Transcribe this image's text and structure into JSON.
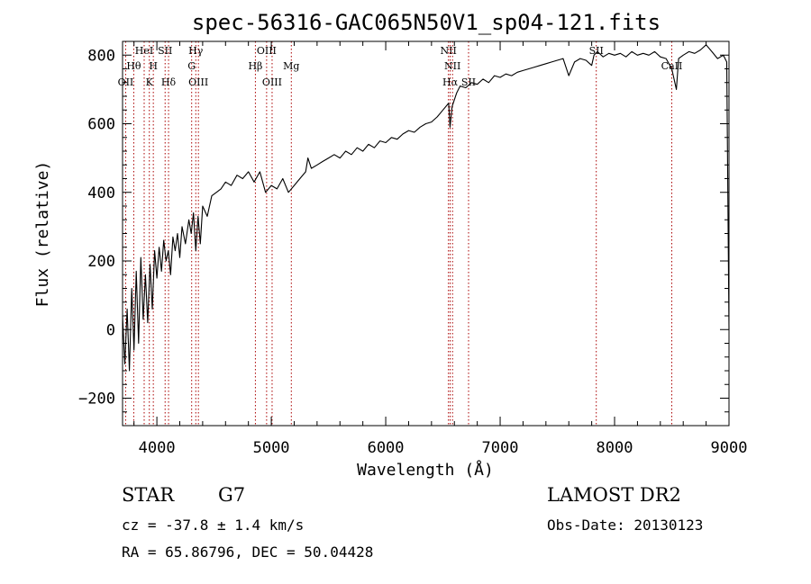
{
  "chart_data": {
    "type": "line",
    "title": "spec-56316-GAC065N50V1_sp04-121.fits",
    "xlabel": "Wavelength (Å)",
    "ylabel": "Flux (relative)",
    "xlim": [
      3700,
      9000
    ],
    "ylim": [
      -280,
      840
    ],
    "x_ticks": [
      4000,
      5000,
      6000,
      7000,
      8000,
      9000
    ],
    "y_ticks": [
      -200,
      0,
      200,
      400,
      600,
      800
    ],
    "grid": false,
    "series": [
      {
        "points": [
          [
            3700,
            40
          ],
          [
            3720,
            -100
          ],
          [
            3740,
            60
          ],
          [
            3760,
            -120
          ],
          [
            3780,
            120
          ],
          [
            3800,
            -60
          ],
          [
            3820,
            170
          ],
          [
            3840,
            -40
          ],
          [
            3860,
            210
          ],
          [
            3880,
            30
          ],
          [
            3900,
            160
          ],
          [
            3920,
            20
          ],
          [
            3940,
            190
          ],
          [
            3960,
            60
          ],
          [
            3980,
            230
          ],
          [
            4000,
            150
          ],
          [
            4020,
            240
          ],
          [
            4040,
            170
          ],
          [
            4060,
            260
          ],
          [
            4080,
            200
          ],
          [
            4100,
            230
          ],
          [
            4120,
            160
          ],
          [
            4140,
            270
          ],
          [
            4160,
            230
          ],
          [
            4180,
            280
          ],
          [
            4200,
            210
          ],
          [
            4220,
            300
          ],
          [
            4250,
            250
          ],
          [
            4280,
            320
          ],
          [
            4300,
            280
          ],
          [
            4320,
            340
          ],
          [
            4340,
            230
          ],
          [
            4360,
            330
          ],
          [
            4380,
            250
          ],
          [
            4400,
            360
          ],
          [
            4440,
            330
          ],
          [
            4480,
            390
          ],
          [
            4520,
            400
          ],
          [
            4560,
            410
          ],
          [
            4600,
            430
          ],
          [
            4650,
            420
          ],
          [
            4700,
            450
          ],
          [
            4750,
            440
          ],
          [
            4800,
            460
          ],
          [
            4850,
            430
          ],
          [
            4900,
            460
          ],
          [
            4950,
            400
          ],
          [
            5000,
            420
          ],
          [
            5050,
            410
          ],
          [
            5100,
            440
          ],
          [
            5150,
            400
          ],
          [
            5200,
            420
          ],
          [
            5250,
            440
          ],
          [
            5300,
            460
          ],
          [
            5320,
            500
          ],
          [
            5350,
            470
          ],
          [
            5400,
            480
          ],
          [
            5450,
            490
          ],
          [
            5500,
            500
          ],
          [
            5550,
            510
          ],
          [
            5600,
            500
          ],
          [
            5650,
            520
          ],
          [
            5700,
            510
          ],
          [
            5750,
            530
          ],
          [
            5800,
            520
          ],
          [
            5850,
            540
          ],
          [
            5900,
            530
          ],
          [
            5950,
            550
          ],
          [
            6000,
            545
          ],
          [
            6050,
            560
          ],
          [
            6100,
            555
          ],
          [
            6150,
            570
          ],
          [
            6200,
            580
          ],
          [
            6250,
            575
          ],
          [
            6300,
            590
          ],
          [
            6350,
            600
          ],
          [
            6400,
            605
          ],
          [
            6450,
            620
          ],
          [
            6500,
            640
          ],
          [
            6550,
            660
          ],
          [
            6562,
            590
          ],
          [
            6580,
            650
          ],
          [
            6620,
            690
          ],
          [
            6650,
            710
          ],
          [
            6700,
            705
          ],
          [
            6750,
            720
          ],
          [
            6800,
            715
          ],
          [
            6850,
            730
          ],
          [
            6900,
            720
          ],
          [
            6950,
            740
          ],
          [
            7000,
            735
          ],
          [
            7050,
            745
          ],
          [
            7100,
            740
          ],
          [
            7150,
            750
          ],
          [
            7200,
            755
          ],
          [
            7250,
            760
          ],
          [
            7300,
            765
          ],
          [
            7350,
            770
          ],
          [
            7400,
            775
          ],
          [
            7450,
            780
          ],
          [
            7500,
            785
          ],
          [
            7550,
            790
          ],
          [
            7600,
            740
          ],
          [
            7650,
            780
          ],
          [
            7700,
            790
          ],
          [
            7750,
            785
          ],
          [
            7800,
            770
          ],
          [
            7820,
            800
          ],
          [
            7850,
            810
          ],
          [
            7900,
            795
          ],
          [
            7950,
            805
          ],
          [
            8000,
            800
          ],
          [
            8050,
            805
          ],
          [
            8100,
            795
          ],
          [
            8150,
            810
          ],
          [
            8200,
            800
          ],
          [
            8250,
            805
          ],
          [
            8300,
            800
          ],
          [
            8350,
            810
          ],
          [
            8400,
            795
          ],
          [
            8450,
            790
          ],
          [
            8500,
            760
          ],
          [
            8540,
            700
          ],
          [
            8560,
            790
          ],
          [
            8600,
            800
          ],
          [
            8650,
            810
          ],
          [
            8700,
            805
          ],
          [
            8750,
            815
          ],
          [
            8800,
            830
          ],
          [
            8850,
            810
          ],
          [
            8900,
            790
          ],
          [
            8950,
            800
          ],
          [
            8980,
            780
          ],
          [
            8990,
            400
          ],
          [
            9000,
            0
          ]
        ]
      }
    ],
    "line_markers": [
      {
        "x": 3727,
        "label": "OII",
        "row": 3
      },
      {
        "x": 3798,
        "label": "Hθ",
        "row": 2
      },
      {
        "x": 3889,
        "label": "HeI",
        "row": 1
      },
      {
        "x": 3934,
        "label": "K",
        "row": 3
      },
      {
        "x": 3969,
        "label": "H",
        "row": 2
      },
      {
        "x": 4072,
        "label": "SII",
        "row": 1
      },
      {
        "x": 4102,
        "label": "Hδ",
        "row": 3
      },
      {
        "x": 4304,
        "label": "G",
        "row": 2
      },
      {
        "x": 4340,
        "label": "Hγ",
        "row": 1
      },
      {
        "x": 4363,
        "label": "OIII",
        "row": 3
      },
      {
        "x": 4861,
        "label": "Hβ",
        "row": 2
      },
      {
        "x": 4959,
        "label": "OIII",
        "row": 1
      },
      {
        "x": 5007,
        "label": "OIII",
        "row": 3
      },
      {
        "x": 5175,
        "label": "Mg",
        "row": 2
      },
      {
        "x": 6548,
        "label": "NII",
        "row": 1
      },
      {
        "x": 6563,
        "label": "Hα",
        "row": 3
      },
      {
        "x": 6584,
        "label": "NII",
        "row": 2
      },
      {
        "x": 6724,
        "label": "SII",
        "row": 3
      },
      {
        "x": 7840,
        "label": "SII",
        "row": 1
      },
      {
        "x": 8500,
        "label": "CaII",
        "row": 2
      }
    ]
  },
  "info": {
    "object_type": "STAR",
    "subclass": "G7",
    "survey": "LAMOST DR2",
    "redshift": "cz = -37.8 ± 1.4 km/s",
    "obs_date": "Obs-Date: 20130123",
    "coords": "RA =  65.86796, DEC =  50.04428"
  },
  "colors": {
    "spectrum": "#000000",
    "marker_lines": "#aa0000",
    "axes": "#000000",
    "background": "#ffffff"
  }
}
